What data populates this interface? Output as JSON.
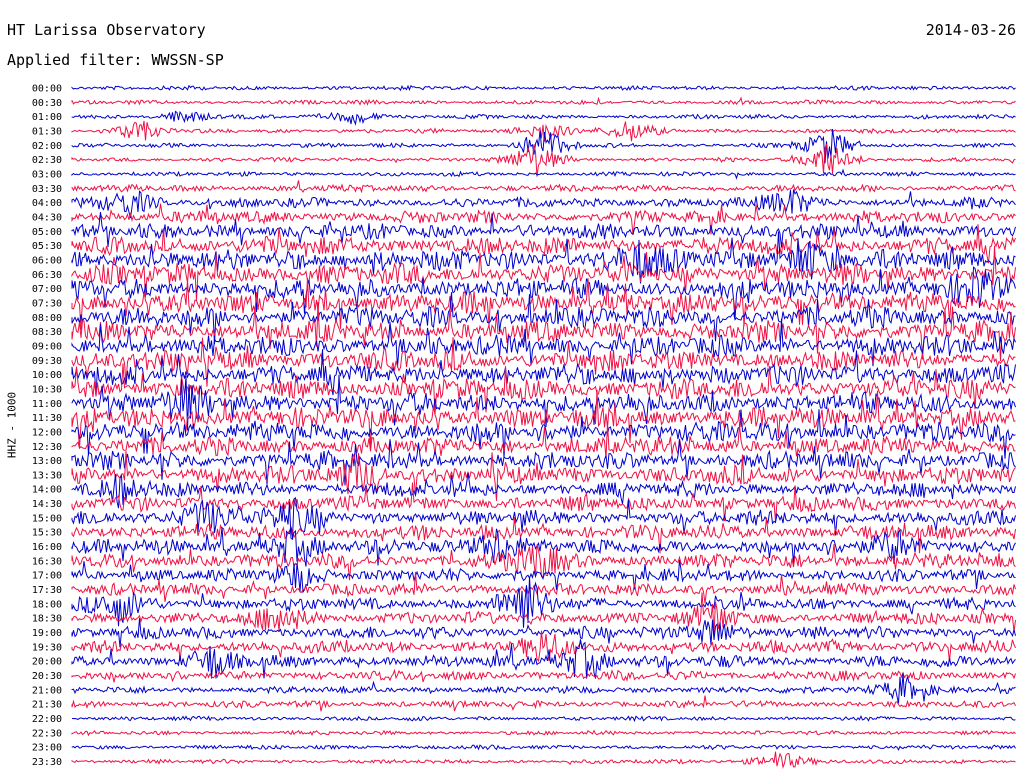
{
  "header": {
    "title": "HT Larissa Observatory",
    "date": "2014-03-26",
    "filter": "Applied filter: WWSSN-SP"
  },
  "chart_data": {
    "type": "line",
    "title": "HT Larissa Observatory",
    "subtitle": "Applied filter: WWSSN-SP",
    "ylabel": "HHZ - 1000",
    "xlabel": "",
    "rows": [
      "00:00",
      "00:30",
      "01:00",
      "01:30",
      "02:00",
      "02:30",
      "03:00",
      "03:30",
      "04:00",
      "04:30",
      "05:00",
      "05:30",
      "06:00",
      "06:30",
      "07:00",
      "07:30",
      "08:00",
      "08:30",
      "09:00",
      "09:30",
      "10:00",
      "10:30",
      "11:00",
      "11:30",
      "12:00",
      "12:30",
      "13:00",
      "13:30",
      "14:00",
      "14:30",
      "15:00",
      "15:30",
      "16:00",
      "16:30",
      "17:00",
      "17:30",
      "18:00",
      "18:30",
      "19:00",
      "19:30",
      "20:00",
      "20:30",
      "21:00",
      "21:30",
      "22:00",
      "22:30",
      "23:00",
      "23:30"
    ],
    "row_minutes": 30,
    "colors": [
      "#0000cc",
      "#ee1144"
    ],
    "grid": false,
    "noise_level": [
      1,
      1,
      1,
      1,
      1,
      1,
      1,
      2,
      3,
      4,
      5,
      6,
      7,
      7,
      7,
      7,
      7,
      7,
      7,
      7,
      7,
      7,
      7,
      7,
      7,
      6,
      6,
      6,
      5,
      5,
      5,
      5,
      5,
      5,
      4,
      4,
      4,
      4,
      4,
      4,
      4,
      3,
      2,
      2,
      1,
      1,
      1,
      1
    ],
    "events": [
      {
        "row": 2,
        "pos": 0.12,
        "amp": 2
      },
      {
        "row": 2,
        "pos": 0.3,
        "amp": 2
      },
      {
        "row": 3,
        "pos": 0.07,
        "amp": 3
      },
      {
        "row": 3,
        "pos": 0.5,
        "amp": 3
      },
      {
        "row": 3,
        "pos": 0.59,
        "amp": 3
      },
      {
        "row": 4,
        "pos": 0.5,
        "amp": 5
      },
      {
        "row": 5,
        "pos": 0.49,
        "amp": 5
      },
      {
        "row": 4,
        "pos": 0.8,
        "amp": 5
      },
      {
        "row": 5,
        "pos": 0.8,
        "amp": 5
      },
      {
        "row": 8,
        "pos": 0.06,
        "amp": 4
      },
      {
        "row": 8,
        "pos": 0.76,
        "amp": 4
      },
      {
        "row": 12,
        "pos": 0.6,
        "amp": 5
      },
      {
        "row": 12,
        "pos": 0.78,
        "amp": 5
      },
      {
        "row": 14,
        "pos": 0.96,
        "amp": 5
      },
      {
        "row": 22,
        "pos": 0.12,
        "amp": 5
      },
      {
        "row": 27,
        "pos": 0.3,
        "amp": 5
      },
      {
        "row": 28,
        "pos": 0.05,
        "amp": 4
      },
      {
        "row": 30,
        "pos": 0.14,
        "amp": 5
      },
      {
        "row": 30,
        "pos": 0.23,
        "amp": 5
      },
      {
        "row": 32,
        "pos": 0.23,
        "amp": 4
      },
      {
        "row": 32,
        "pos": 0.45,
        "amp": 5
      },
      {
        "row": 32,
        "pos": 0.87,
        "amp": 4
      },
      {
        "row": 33,
        "pos": 0.49,
        "amp": 5
      },
      {
        "row": 34,
        "pos": 0.24,
        "amp": 4
      },
      {
        "row": 36,
        "pos": 0.05,
        "amp": 5
      },
      {
        "row": 36,
        "pos": 0.48,
        "amp": 8
      },
      {
        "row": 37,
        "pos": 0.22,
        "amp": 4
      },
      {
        "row": 37,
        "pos": 0.68,
        "amp": 4
      },
      {
        "row": 38,
        "pos": 0.68,
        "amp": 4
      },
      {
        "row": 39,
        "pos": 0.5,
        "amp": 4
      },
      {
        "row": 40,
        "pos": 0.15,
        "amp": 4
      },
      {
        "row": 40,
        "pos": 0.54,
        "amp": 5
      },
      {
        "row": 42,
        "pos": 0.88,
        "amp": 4
      },
      {
        "row": 47,
        "pos": 0.75,
        "amp": 3
      }
    ]
  }
}
